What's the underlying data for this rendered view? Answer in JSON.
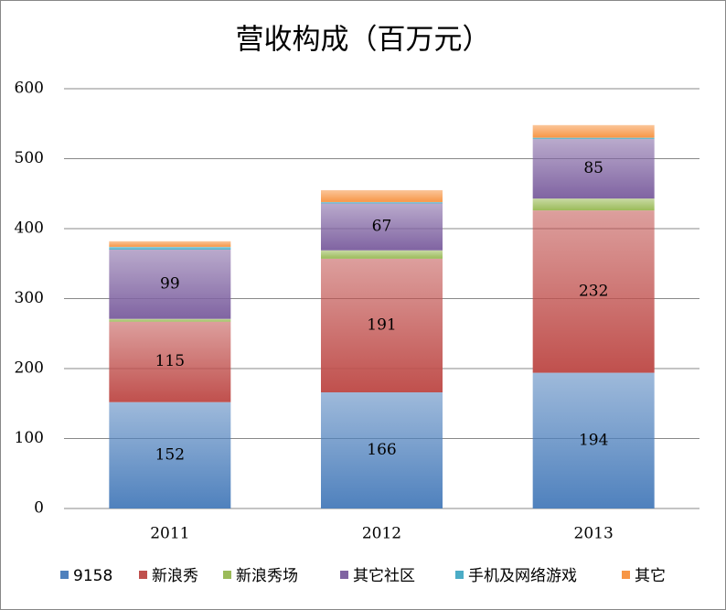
{
  "chart_data": {
    "type": "stacked_bar",
    "title": "营收构成（百万元）",
    "categories": [
      "2011",
      "2012",
      "2013"
    ],
    "series": [
      {
        "name": "9158",
        "color": "#4f81bd",
        "values": [
          152,
          166,
          194
        ],
        "data_labels": true
      },
      {
        "name": "新浪秀",
        "color": "#c0504d",
        "values": [
          115,
          191,
          232
        ],
        "data_labels": true
      },
      {
        "name": "新浪秀场",
        "color": "#9bbb59",
        "values": [
          4,
          12,
          17
        ]
      },
      {
        "name": "其它社区",
        "color": "#8064a2",
        "values": [
          99,
          67,
          85
        ],
        "data_labels": true
      },
      {
        "name": "手机及网络游戏",
        "color": "#4bacc6",
        "values": [
          4,
          2,
          2
        ]
      },
      {
        "name": "其它",
        "color": "#f79646",
        "values": [
          8,
          17,
          18
        ]
      }
    ],
    "ylim": [
      0,
      600
    ],
    "yticks": [
      0,
      100,
      200,
      300,
      400,
      500,
      600
    ],
    "grid": true
  }
}
